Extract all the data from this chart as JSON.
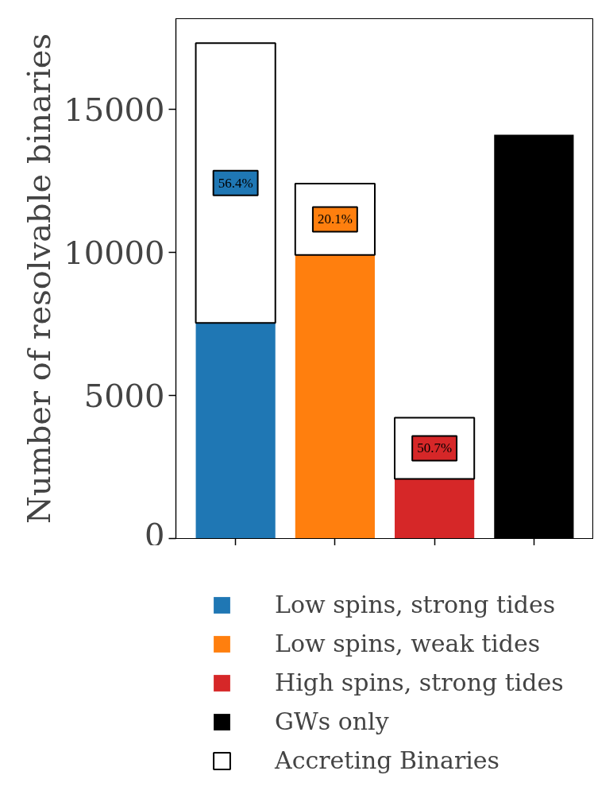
{
  "chart_data": {
    "type": "bar",
    "ylabel": "Number of resolvable binaries",
    "categories": [
      null,
      null,
      null,
      null
    ],
    "stacked": true,
    "series": [
      {
        "name": "Low spins, strong tides",
        "color": "#1f77b4",
        "values": [
          7530,
          null,
          null,
          null
        ]
      },
      {
        "name": "Low spins, weak tides",
        "color": "#ff7f0e",
        "values": [
          null,
          9900,
          null,
          null
        ]
      },
      {
        "name": "High spins, strong tides",
        "color": "#d62728",
        "values": [
          null,
          null,
          2080,
          null
        ]
      },
      {
        "name": "GWs only",
        "color": "#000000",
        "values": [
          null,
          null,
          null,
          14100
        ]
      },
      {
        "name": "Accreting Binaries",
        "color": "#ffffff",
        "values": [
          9770,
          2490,
          2140,
          null
        ]
      }
    ],
    "annotations": [
      "56.4%",
      "20.1%",
      "50.7%"
    ],
    "ylim": [
      0,
      18150
    ],
    "yticks": [
      0,
      5000,
      10000,
      15000
    ],
    "tick_labels": "y",
    "grid": false,
    "legend": "bottom"
  }
}
